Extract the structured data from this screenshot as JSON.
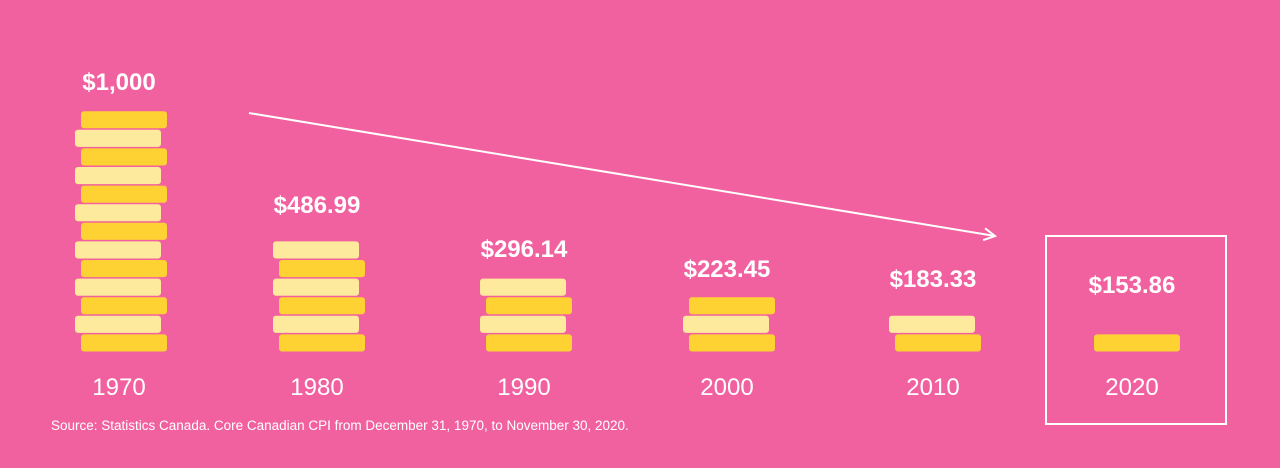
{
  "chart_data": {
    "type": "bar",
    "categories": [
      "1970",
      "1980",
      "1990",
      "2000",
      "2010",
      "2020"
    ],
    "values": [
      1000,
      486.99,
      296.14,
      223.45,
      183.33,
      153.86
    ],
    "value_labels": [
      "$1,000",
      "$486.99",
      "$296.14",
      "$223.45",
      "$183.33",
      "$153.86"
    ],
    "coin_counts": [
      13,
      6,
      4,
      3,
      2,
      1
    ],
    "highlighted_category": "2020",
    "trend_arrow": true,
    "grid": false
  },
  "colors": {
    "background": "#f2619f",
    "coin_dark": "#fed232",
    "coin_light": "#feea9c",
    "text": "#ffffff"
  },
  "source_text": "Source: Statistics Canada. Core Canadian CPI from December 31, 1970, to November 30, 2020."
}
